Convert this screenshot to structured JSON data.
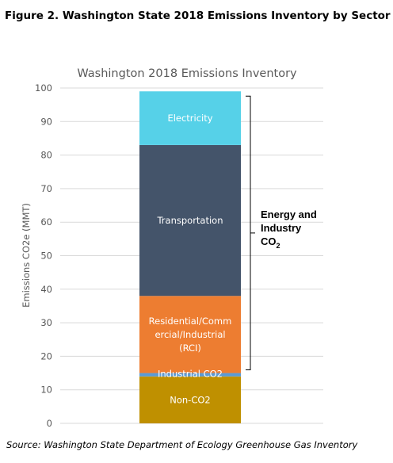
{
  "figure_title": "Figure 2. Washington State 2018 Emissions Inventory by Sector",
  "source": "Source: Washington State Department of Ecology Greenhouse Gas Inventory",
  "chart_data": {
    "type": "bar",
    "stacked": true,
    "title": "Washington 2018 Emissions Inventory",
    "xlabel": "",
    "ylabel": "Emissions CO2e (MMT)",
    "ylim": [
      0,
      100
    ],
    "yticks": [
      0,
      10,
      20,
      30,
      40,
      50,
      60,
      70,
      80,
      90,
      100
    ],
    "grid": true,
    "categories": [
      ""
    ],
    "series": [
      {
        "name": "Non-CO2",
        "label_lines": [
          "Non-CO2"
        ],
        "values": [
          14
        ],
        "color": "#BF9000"
      },
      {
        "name": "Industrial CO2",
        "label_lines": [
          "Industrial CO2"
        ],
        "values": [
          1
        ],
        "color": "#5B9BD5"
      },
      {
        "name": "Residential/Commercial/Industrial (RCI)",
        "label_lines": [
          "Residential/Comm",
          "ercial/Industrial",
          "(RCI)"
        ],
        "values": [
          23
        ],
        "color": "#ED7D31"
      },
      {
        "name": "Transportation",
        "label_lines": [
          "Transportation"
        ],
        "values": [
          45
        ],
        "color": "#44546A"
      },
      {
        "name": "Electricity",
        "label_lines": [
          "Electricity"
        ],
        "values": [
          16
        ],
        "color": "#56D1E8"
      }
    ],
    "bracket": {
      "label_lines": [
        "Energy and",
        "Industry"
      ],
      "label_co2": "CO",
      "label_co2_sub": "2",
      "range": [
        15,
        99
      ]
    }
  }
}
